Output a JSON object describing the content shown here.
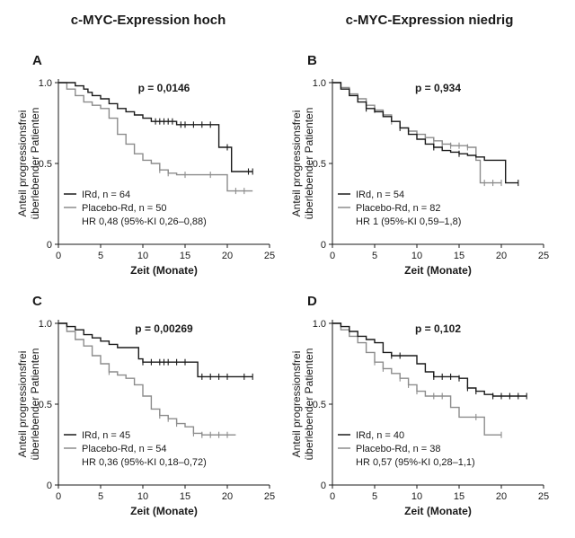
{
  "header": {
    "left_title": "c-MYC-Expression hoch",
    "right_title": "c-MYC-Expression niedrig"
  },
  "colors": {
    "irdb": "#1a1a1a",
    "placebo": "#8c8c8c"
  },
  "chart_data": [
    {
      "type": "line",
      "panel": "A",
      "p_value": "p = 0,0146",
      "xlabel": "Zeit (Monate)",
      "ylabel": "Anteil progressionsfrei überlebender Patienten",
      "xlim": [
        0,
        25
      ],
      "ylim": [
        0,
        1
      ],
      "xticks": [
        0,
        5,
        10,
        15,
        20,
        25
      ],
      "yticks": [
        0,
        0.5,
        1.0
      ],
      "ytick_labels": [
        "0",
        "0.5",
        "1.0"
      ],
      "legend_lines": [
        "IRd, n = 64",
        "Placebo-Rd, n = 50",
        "HR 0,48 (95%-KI 0,26–0,88)"
      ],
      "series": [
        {
          "name": "IRd, n = 64",
          "color": "#1a1a1a",
          "x": [
            0,
            1,
            2,
            3,
            3.5,
            4,
            5,
            6,
            7,
            8,
            9,
            10,
            11,
            12,
            13,
            14,
            15,
            16,
            17,
            18,
            19,
            20,
            20.5,
            21,
            22,
            23
          ],
          "y": [
            1.0,
            1.0,
            0.98,
            0.96,
            0.94,
            0.92,
            0.9,
            0.87,
            0.84,
            0.82,
            0.8,
            0.78,
            0.76,
            0.76,
            0.76,
            0.74,
            0.74,
            0.74,
            0.74,
            0.74,
            0.6,
            0.6,
            0.45,
            0.45,
            0.45,
            0.45
          ],
          "censor_x": [
            11.5,
            12,
            12.5,
            13,
            13.5,
            14.5,
            15,
            16,
            17,
            18,
            20,
            22.5,
            23
          ]
        },
        {
          "name": "Placebo-Rd, n = 50",
          "color": "#8c8c8c",
          "x": [
            0,
            1,
            2,
            3,
            4,
            5,
            6,
            7,
            8,
            9,
            10,
            11,
            12,
            13,
            14,
            15,
            16,
            17,
            18,
            19,
            20,
            21,
            22,
            23
          ],
          "y": [
            1.0,
            0.96,
            0.92,
            0.88,
            0.86,
            0.84,
            0.78,
            0.68,
            0.62,
            0.56,
            0.52,
            0.5,
            0.46,
            0.44,
            0.43,
            0.43,
            0.43,
            0.43,
            0.43,
            0.43,
            0.33,
            0.33,
            0.33,
            0.33
          ],
          "censor_x": [
            12,
            13,
            15,
            18,
            21,
            22
          ]
        }
      ]
    },
    {
      "type": "line",
      "panel": "B",
      "p_value": "p = 0,934",
      "xlabel": "Zeit (Monate)",
      "ylabel": "Anteil progressionsfrei überlebender Patienten",
      "xlim": [
        0,
        25
      ],
      "ylim": [
        0,
        1
      ],
      "xticks": [
        0,
        5,
        10,
        15,
        20,
        25
      ],
      "yticks": [
        0,
        0.5,
        1.0
      ],
      "ytick_labels": [
        "0",
        "0.5",
        "1.0"
      ],
      "legend_lines": [
        "IRd, n = 54",
        "Placebo-Rd, n = 82",
        "HR 1 (95%-KI 0,59–1,8)"
      ],
      "series": [
        {
          "name": "IRd, n = 54",
          "color": "#1a1a1a",
          "x": [
            0,
            1,
            2,
            3,
            4,
            5,
            6,
            7,
            8,
            9,
            10,
            11,
            12,
            13,
            14,
            15,
            16,
            17,
            18,
            19,
            20,
            20.5,
            21,
            22
          ],
          "y": [
            1.0,
            0.96,
            0.92,
            0.88,
            0.84,
            0.82,
            0.79,
            0.76,
            0.72,
            0.68,
            0.65,
            0.62,
            0.6,
            0.58,
            0.57,
            0.56,
            0.55,
            0.54,
            0.52,
            0.52,
            0.52,
            0.38,
            0.38,
            0.38
          ],
          "censor_x": [
            4,
            8,
            12,
            15,
            22
          ]
        },
        {
          "name": "Placebo-Rd, n = 82",
          "color": "#8c8c8c",
          "x": [
            0,
            1,
            2,
            3,
            4,
            5,
            6,
            7,
            8,
            9,
            10,
            11,
            12,
            13,
            14,
            15,
            16,
            17,
            17.5,
            18,
            19,
            20
          ],
          "y": [
            1.0,
            0.97,
            0.93,
            0.9,
            0.86,
            0.83,
            0.8,
            0.76,
            0.72,
            0.7,
            0.68,
            0.66,
            0.64,
            0.62,
            0.61,
            0.61,
            0.6,
            0.52,
            0.38,
            0.38,
            0.38,
            0.38
          ],
          "censor_x": [
            5,
            7,
            9,
            10,
            11,
            12,
            13,
            14,
            15,
            16,
            18,
            19,
            20
          ]
        }
      ]
    },
    {
      "type": "line",
      "panel": "C",
      "p_value": "p = 0,00269",
      "xlabel": "Zeit (Monate)",
      "ylabel": "Anteil progressionsfrei überlebender Patienten",
      "xlim": [
        0,
        25
      ],
      "ylim": [
        0,
        1
      ],
      "xticks": [
        0,
        5,
        10,
        15,
        20,
        25
      ],
      "yticks": [
        0,
        0.5,
        1.0
      ],
      "ytick_labels": [
        "0",
        "0.5",
        "1.0"
      ],
      "legend_lines": [
        "IRd, n = 45",
        "Placebo-Rd, n = 54",
        "HR 0,36 (95%-KI 0,18–0,72)"
      ],
      "series": [
        {
          "name": "IRd, n = 45",
          "color": "#1a1a1a",
          "x": [
            0,
            1,
            2,
            3,
            4,
            5,
            6,
            7,
            8,
            9,
            9.5,
            10,
            11,
            12,
            13,
            14,
            15,
            16,
            16.5,
            17,
            18,
            19,
            20,
            21,
            22,
            23
          ],
          "y": [
            1.0,
            0.98,
            0.96,
            0.93,
            0.91,
            0.89,
            0.87,
            0.85,
            0.85,
            0.85,
            0.78,
            0.76,
            0.76,
            0.76,
            0.76,
            0.76,
            0.76,
            0.76,
            0.67,
            0.67,
            0.67,
            0.67,
            0.67,
            0.67,
            0.67,
            0.67
          ],
          "censor_x": [
            10,
            11,
            12,
            12.5,
            13,
            14,
            15,
            17,
            18,
            19,
            20,
            22,
            23
          ]
        },
        {
          "name": "Placebo-Rd, n = 54",
          "color": "#8c8c8c",
          "x": [
            0,
            1,
            2,
            3,
            4,
            5,
            6,
            7,
            8,
            9,
            10,
            11,
            12,
            13,
            14,
            15,
            16,
            17,
            18,
            19,
            20,
            21
          ],
          "y": [
            1.0,
            0.95,
            0.9,
            0.86,
            0.8,
            0.75,
            0.7,
            0.68,
            0.66,
            0.62,
            0.55,
            0.47,
            0.43,
            0.41,
            0.38,
            0.36,
            0.32,
            0.31,
            0.31,
            0.31,
            0.31,
            0.31
          ],
          "censor_x": [
            6,
            12,
            13,
            14,
            16,
            17,
            18,
            19,
            20
          ]
        }
      ]
    },
    {
      "type": "line",
      "panel": "D",
      "p_value": "p = 0,102",
      "xlabel": "Zeit (Monate)",
      "ylabel": "Anteil progressionsfrei überlebender Patienten",
      "xlim": [
        0,
        25
      ],
      "ylim": [
        0,
        1
      ],
      "xticks": [
        0,
        5,
        10,
        15,
        20,
        25
      ],
      "yticks": [
        0,
        0.5,
        1.0
      ],
      "ytick_labels": [
        "0",
        "0.5",
        "1.0"
      ],
      "legend_lines": [
        "IRd, n = 40",
        "Placebo-Rd, n = 38",
        "HR 0,57 (95%-KI 0,28–1,1)"
      ],
      "series": [
        {
          "name": "IRd, n = 40",
          "color": "#1a1a1a",
          "x": [
            0,
            1,
            2,
            3,
            4,
            5,
            6,
            7,
            8,
            9,
            10,
            11,
            12,
            13,
            14,
            15,
            16,
            17,
            18,
            19,
            20,
            21,
            22,
            23
          ],
          "y": [
            1.0,
            0.98,
            0.95,
            0.92,
            0.9,
            0.88,
            0.82,
            0.8,
            0.8,
            0.8,
            0.75,
            0.7,
            0.67,
            0.67,
            0.67,
            0.66,
            0.6,
            0.58,
            0.56,
            0.55,
            0.55,
            0.55,
            0.55,
            0.55
          ],
          "censor_x": [
            7,
            8,
            12,
            13,
            14,
            15,
            16,
            17,
            19,
            20,
            21,
            22,
            23
          ]
        },
        {
          "name": "Placebo-Rd, n = 38",
          "color": "#8c8c8c",
          "x": [
            0,
            1,
            2,
            3,
            4,
            5,
            6,
            7,
            8,
            9,
            10,
            11,
            12,
            13,
            14,
            15,
            16,
            17,
            18,
            19,
            20
          ],
          "y": [
            1.0,
            0.96,
            0.92,
            0.88,
            0.82,
            0.76,
            0.72,
            0.69,
            0.66,
            0.62,
            0.58,
            0.55,
            0.55,
            0.55,
            0.48,
            0.42,
            0.42,
            0.42,
            0.31,
            0.31,
            0.31
          ],
          "censor_x": [
            5,
            6,
            8,
            9,
            10,
            12,
            13,
            17,
            20
          ]
        }
      ]
    }
  ]
}
